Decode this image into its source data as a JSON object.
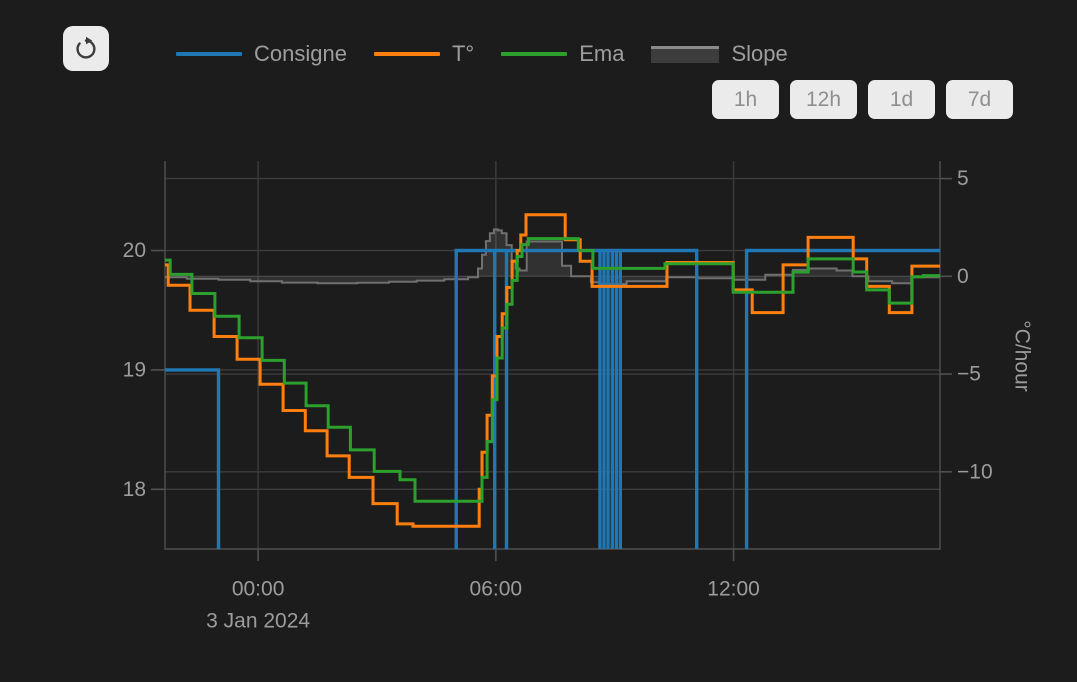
{
  "theme": {
    "page_bg": "#1c1c1c",
    "control_bg": "#ebebeb",
    "control_text": "#8f8f8f",
    "icon_color": "#3c3c3c",
    "grid_color": "#3d3d3d",
    "axis_color": "#505050",
    "tick_text": "#9c9c9c",
    "legend_text": "#9e9e9e"
  },
  "controls": {
    "range_buttons": [
      "1h",
      "12h",
      "1d",
      "7d"
    ]
  },
  "chart_data": {
    "type": "line",
    "title": "",
    "x_axis": {
      "unit": "hours from midnight",
      "domain": [
        -2.35,
        17.21
      ],
      "ticks": [
        {
          "t": 0,
          "label": "00:00"
        },
        {
          "t": 6,
          "label": "06:00"
        },
        {
          "t": 12,
          "label": "12:00"
        }
      ],
      "date_label": "3 Jan 2024",
      "grid": true
    },
    "y_left": {
      "label": "",
      "domain": [
        17.5,
        20.75
      ],
      "ticks": [
        {
          "v": 20,
          "label": "20"
        },
        {
          "v": 19,
          "label": "19"
        },
        {
          "v": 18,
          "label": "18"
        }
      ]
    },
    "y_right": {
      "label": "°C/hour",
      "domain": [
        -13.95,
        5.9
      ],
      "ticks": [
        {
          "v": 5,
          "label": "5"
        },
        {
          "v": 0,
          "label": "0"
        },
        {
          "v": -5,
          "label": "−5"
        },
        {
          "v": -10,
          "label": "−10"
        }
      ]
    },
    "series": [
      {
        "name": "Consigne",
        "color": "#1f77b4",
        "type": "step",
        "axis": "left",
        "points": [
          [
            -2.35,
            19
          ],
          [
            -1.0,
            null
          ],
          [
            5.0,
            20
          ],
          [
            11.07,
            null
          ],
          [
            12.33,
            20
          ]
        ],
        "spike_times": [
          5.97,
          6.27,
          8.63,
          8.73,
          8.83,
          8.94,
          9.04,
          9.14
        ],
        "spike_value": 20
      },
      {
        "name": "T°",
        "color": "#ff7f0e",
        "type": "step",
        "axis": "left",
        "points": [
          [
            -2.35,
            19.88
          ],
          [
            -2.27,
            19.71
          ],
          [
            -1.72,
            19.5
          ],
          [
            -1.11,
            19.28
          ],
          [
            -0.53,
            19.09
          ],
          [
            0.05,
            18.88
          ],
          [
            0.63,
            18.66
          ],
          [
            1.19,
            18.49
          ],
          [
            1.74,
            18.28
          ],
          [
            2.3,
            18.1
          ],
          [
            2.9,
            17.88
          ],
          [
            3.51,
            17.71
          ],
          [
            3.91,
            17.69
          ],
          [
            5.58,
            18.0
          ],
          [
            5.65,
            18.31
          ],
          [
            5.78,
            18.62
          ],
          [
            5.91,
            18.95
          ],
          [
            6.03,
            19.28
          ],
          [
            6.16,
            19.47
          ],
          [
            6.28,
            19.69
          ],
          [
            6.41,
            19.91
          ],
          [
            6.54,
            20.0
          ],
          [
            6.63,
            20.13
          ],
          [
            6.76,
            20.3
          ],
          [
            7.75,
            20.09
          ],
          [
            8.13,
            19.91
          ],
          [
            8.43,
            19.7
          ],
          [
            10.32,
            19.9
          ],
          [
            11.99,
            19.67
          ],
          [
            12.47,
            19.48
          ],
          [
            13.25,
            19.88
          ],
          [
            13.88,
            20.11
          ],
          [
            15.02,
            19.93
          ],
          [
            15.36,
            19.7
          ],
          [
            15.93,
            19.48
          ],
          [
            16.5,
            19.87
          ]
        ]
      },
      {
        "name": "Ema",
        "color": "#2ca02c",
        "type": "step",
        "axis": "left",
        "points": [
          [
            -2.35,
            19.92
          ],
          [
            -2.22,
            19.8
          ],
          [
            -1.67,
            19.64
          ],
          [
            -1.09,
            19.45
          ],
          [
            -0.48,
            19.27
          ],
          [
            0.1,
            19.08
          ],
          [
            0.66,
            18.89
          ],
          [
            1.21,
            18.7
          ],
          [
            1.77,
            18.52
          ],
          [
            2.33,
            18.33
          ],
          [
            2.93,
            18.15
          ],
          [
            3.58,
            18.08
          ],
          [
            3.96,
            17.9
          ],
          [
            5.65,
            18.1
          ],
          [
            5.78,
            18.4
          ],
          [
            5.91,
            18.75
          ],
          [
            6.03,
            19.1
          ],
          [
            6.16,
            19.35
          ],
          [
            6.28,
            19.55
          ],
          [
            6.41,
            19.75
          ],
          [
            6.54,
            19.95
          ],
          [
            6.66,
            20.05
          ],
          [
            6.82,
            20.1
          ],
          [
            8.08,
            20.0
          ],
          [
            8.45,
            19.85
          ],
          [
            10.27,
            19.89
          ],
          [
            11.99,
            19.65
          ],
          [
            13.5,
            19.82
          ],
          [
            13.88,
            19.93
          ],
          [
            15.02,
            19.82
          ],
          [
            15.36,
            19.67
          ],
          [
            15.93,
            19.56
          ],
          [
            16.5,
            19.78
          ],
          [
            16.79,
            19.79
          ]
        ]
      },
      {
        "name": "Slope",
        "color": "#707070",
        "fill": "rgba(160,160,160,0.16)",
        "legend_fill": "#3d3d3d",
        "legend_line": "#8a8a8a",
        "type": "step-area",
        "axis": "right",
        "points": [
          [
            -2.35,
            -0.05
          ],
          [
            -1.8,
            -0.12
          ],
          [
            -1.0,
            -0.18
          ],
          [
            -0.2,
            -0.25
          ],
          [
            0.6,
            -0.32
          ],
          [
            1.5,
            -0.35
          ],
          [
            2.5,
            -0.33
          ],
          [
            3.3,
            -0.28
          ],
          [
            4.0,
            -0.22
          ],
          [
            4.7,
            -0.15
          ],
          [
            5.3,
            -0.05
          ],
          [
            5.55,
            0.4
          ],
          [
            5.65,
            1.1
          ],
          [
            5.75,
            1.8
          ],
          [
            5.85,
            2.2
          ],
          [
            5.95,
            2.4
          ],
          [
            6.05,
            2.35
          ],
          [
            6.15,
            2.2
          ],
          [
            6.27,
            1.6
          ],
          [
            6.4,
            0.8
          ],
          [
            6.5,
            0.4
          ],
          [
            6.6,
            0.3
          ],
          [
            6.78,
            1.78
          ],
          [
            7.67,
            0.54
          ],
          [
            7.9,
            0.0
          ],
          [
            8.4,
            -0.3
          ],
          [
            8.6,
            -0.4
          ],
          [
            9.3,
            -0.25
          ],
          [
            10.3,
            -0.05
          ],
          [
            11.1,
            -0.1
          ],
          [
            12.0,
            -0.18
          ],
          [
            12.8,
            0.08
          ],
          [
            13.5,
            0.33
          ],
          [
            13.9,
            0.4
          ],
          [
            14.6,
            0.3
          ],
          [
            15.0,
            0.0
          ],
          [
            15.4,
            -0.25
          ],
          [
            16.0,
            -0.35
          ],
          [
            16.5,
            -0.05
          ]
        ]
      }
    ],
    "legend_position": "top",
    "grid": true
  }
}
